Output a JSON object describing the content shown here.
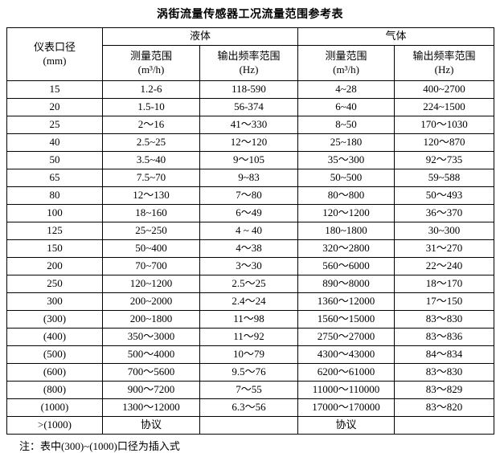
{
  "title": "涡街流量传感器工况流量范围参考表",
  "note": "注：表中(300)~(1000)口径为插入式",
  "table": {
    "header": {
      "diameter": "仪表口径\n(mm)",
      "liquid": "液体",
      "gas": "气体",
      "measure_range": "测量范围\n(m³/h)",
      "freq_range": "输出频率范围\n(Hz)"
    },
    "rows": [
      [
        "15",
        "1.2-6",
        "118-590",
        "4~28",
        "400~2700"
      ],
      [
        "20",
        "1.5-10",
        "56-374",
        "6~40",
        "224~1500"
      ],
      [
        "25",
        "2～16",
        "41～330",
        "8~50",
        "170～1030"
      ],
      [
        "40",
        "2.5~25",
        "12～120",
        "25~180",
        "120～870"
      ],
      [
        "50",
        "3.5~40",
        "9～105",
        "35～300",
        "92～735"
      ],
      [
        "65",
        "7.5~70",
        "9~83",
        "50~500",
        "59~588"
      ],
      [
        "80",
        "12～130",
        "7～80",
        "80～800",
        "50～493"
      ],
      [
        "100",
        "18~160",
        "6～49",
        "120～1200",
        "36～370"
      ],
      [
        "125",
        "25~250",
        "4 ~ 40",
        "180~1800",
        "30~300"
      ],
      [
        "150",
        "50~400",
        "4～38",
        "320～2800",
        "31～270"
      ],
      [
        "200",
        "70~700",
        "3～30",
        "560～6000",
        "22～240"
      ],
      [
        "250",
        "120~1200",
        "2.5～25",
        "890～8000",
        "18～170"
      ],
      [
        "300",
        "200~2000",
        "2.4～24",
        "1360～12000",
        "17～150"
      ],
      [
        "(300)",
        "200~1800",
        "11～98",
        "1560～15000",
        "83～830"
      ],
      [
        "(400)",
        "350～3000",
        "11～92",
        "2750～27000",
        "83～836"
      ],
      [
        "(500)",
        "500～4000",
        "10～79",
        "4300～43000",
        "84～834"
      ],
      [
        "(600)",
        "700～5600",
        "9.5～76",
        "6200～61000",
        "83～830"
      ],
      [
        "(800)",
        "900～7200",
        "7～55",
        "11000～110000",
        "83～829"
      ],
      [
        "(1000)",
        "1300～12000",
        "6.3～56",
        "17000～170000",
        "83～820"
      ],
      [
        ">(1000)",
        "协议",
        "",
        "协议",
        ""
      ]
    ]
  }
}
